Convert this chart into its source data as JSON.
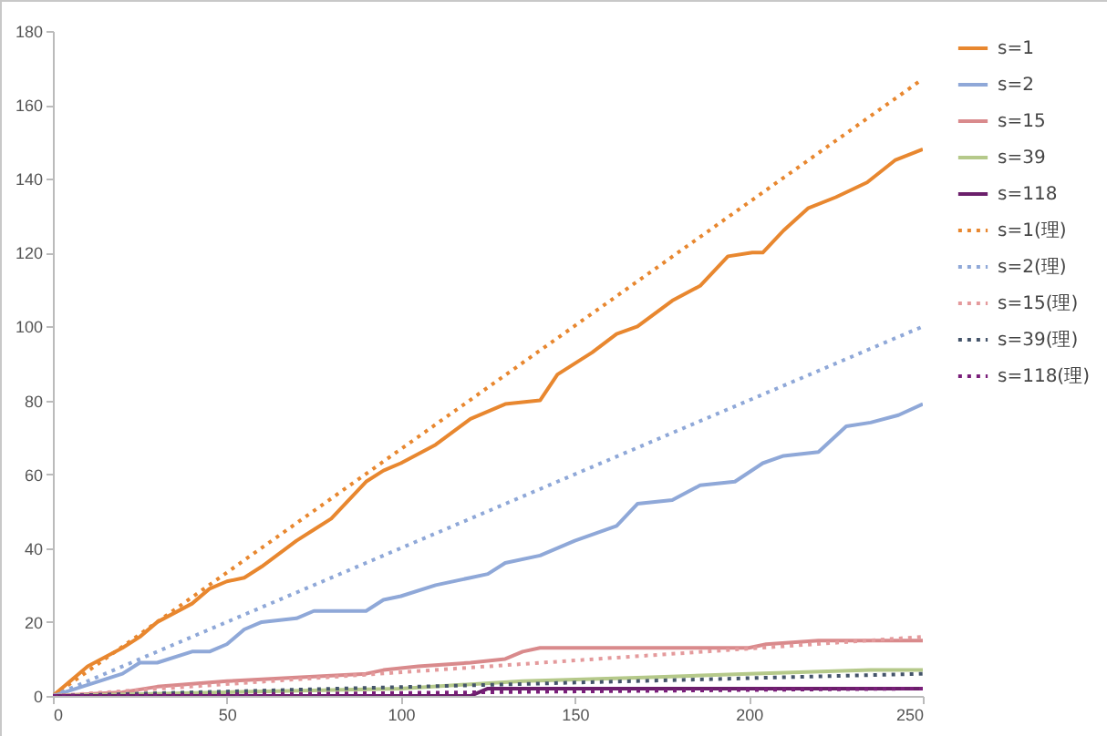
{
  "chart_data": {
    "type": "line",
    "xlim": [
      0,
      250
    ],
    "xticks": [
      0,
      50,
      100,
      150,
      200,
      250
    ],
    "ylim": [
      0,
      180
    ],
    "yticks": [
      0,
      20,
      40,
      60,
      80,
      100,
      120,
      140,
      160,
      180
    ],
    "grid": false,
    "legend": "right",
    "marker": "none",
    "series": [
      {
        "name": "s=1",
        "color": "#e8872f",
        "line_style": "solid",
        "x": [
          0,
          10,
          20,
          25,
          30,
          40,
          45,
          50,
          55,
          60,
          70,
          75,
          80,
          90,
          95,
          100,
          110,
          120,
          130,
          140,
          145,
          155,
          162,
          168,
          178,
          186,
          194,
          201,
          204,
          210,
          217,
          225,
          234,
          242,
          250
        ],
        "values": [
          0,
          8,
          13,
          16,
          20,
          25,
          29,
          31,
          32,
          35,
          42,
          45,
          48,
          58,
          61,
          63,
          68,
          75,
          79,
          80,
          87,
          93,
          98,
          100,
          107,
          111,
          119,
          120,
          120,
          126,
          132,
          135,
          139,
          145,
          148
        ]
      },
      {
        "name": "s=2",
        "color": "#8fa8d8",
        "line_style": "solid",
        "x": [
          0,
          10,
          20,
          25,
          30,
          40,
          45,
          50,
          55,
          60,
          70,
          75,
          90,
          95,
          100,
          110,
          120,
          125,
          130,
          140,
          150,
          162,
          168,
          178,
          186,
          196,
          204,
          210,
          220,
          228,
          235,
          243,
          250
        ],
        "values": [
          0,
          3,
          6,
          9,
          9,
          12,
          12,
          14,
          18,
          20,
          21,
          23,
          23,
          26,
          27,
          30,
          32,
          33,
          36,
          38,
          42,
          46,
          52,
          53,
          57,
          58,
          63,
          65,
          66,
          73,
          74,
          76,
          79
        ]
      },
      {
        "name": "s=15",
        "color": "#d98a8c",
        "line_style": "solid",
        "x": [
          0,
          20,
          30,
          50,
          70,
          90,
          95,
          105,
          120,
          130,
          135,
          140,
          200,
          205,
          220,
          250
        ],
        "values": [
          0,
          1,
          2.5,
          4,
          5,
          6,
          7,
          8,
          9,
          10,
          12,
          13,
          13,
          14,
          15,
          15
        ]
      },
      {
        "name": "s=39",
        "color": "#b5c98a",
        "line_style": "solid",
        "x": [
          0,
          50,
          100,
          135,
          170,
          200,
          235,
          250
        ],
        "values": [
          0,
          1,
          2,
          4,
          5,
          6,
          7,
          7
        ]
      },
      {
        "name": "s=118",
        "color": "#6b1f6b",
        "line_style": "solid",
        "x": [
          0,
          120,
          125,
          250
        ],
        "values": [
          0,
          0,
          2,
          2
        ]
      },
      {
        "name": "s=1(理)",
        "color": "#e8872f",
        "line_style": "dotted",
        "x": [
          0,
          250
        ],
        "values": [
          0,
          167
        ]
      },
      {
        "name": "s=2(理)",
        "color": "#8fa8d8",
        "line_style": "dotted",
        "x": [
          0,
          250
        ],
        "values": [
          0,
          100
        ]
      },
      {
        "name": "s=15(理)",
        "color": "#e49a9c",
        "line_style": "dotted",
        "x": [
          0,
          250
        ],
        "values": [
          0,
          16
        ]
      },
      {
        "name": "s=39(理)",
        "color": "#44546a",
        "line_style": "dotted",
        "x": [
          0,
          250
        ],
        "values": [
          0,
          6
        ]
      },
      {
        "name": "s=118(理)",
        "color": "#7a1f7a",
        "line_style": "dotted",
        "x": [
          0,
          250
        ],
        "values": [
          0,
          2
        ]
      }
    ]
  }
}
